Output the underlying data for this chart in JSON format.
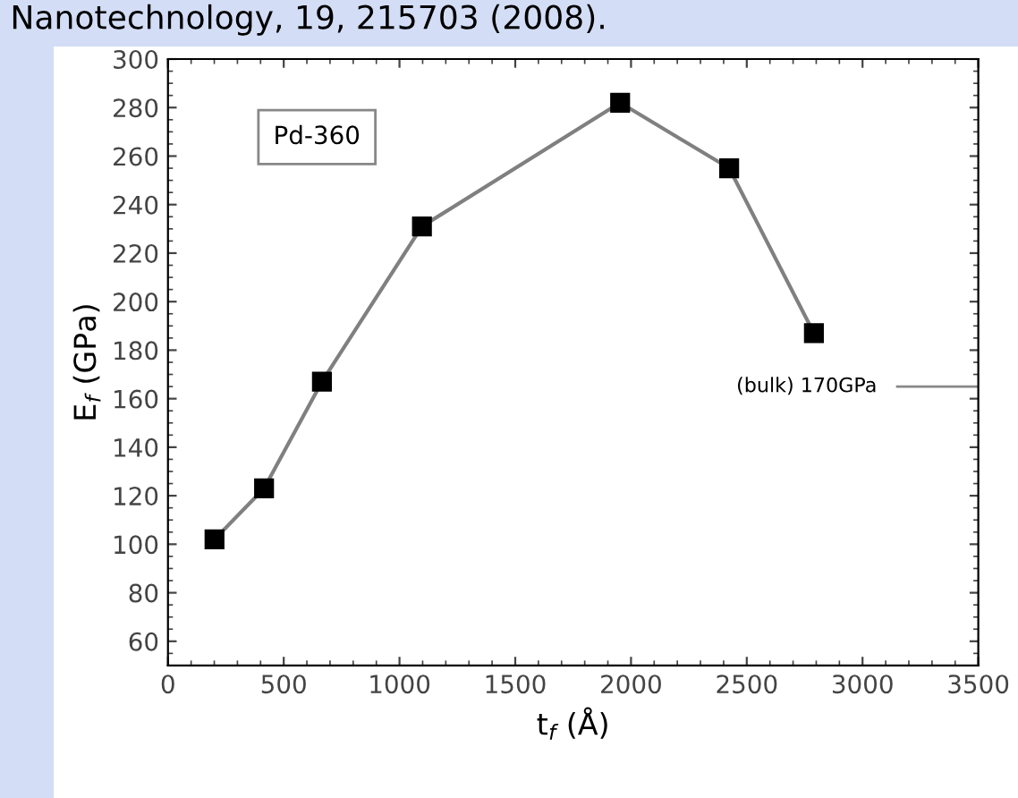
{
  "chart_data": {
    "type": "line",
    "title": "Nanotechnology, 19, 215703 (2008).",
    "xlabel": "t$_{f}$ (Å)",
    "ylabel": "E$_{f}$ (GPa)",
    "x": [
      201,
      415,
      665,
      1097,
      1953,
      2424,
      2790
    ],
    "series": [
      {
        "color": "#808080",
        "values": [
          102,
          123,
          167,
          231,
          282,
          255,
          187
        ]
      }
    ],
    "marker": "square",
    "line_style": "solid",
    "grid": false,
    "legend": false,
    "xlim": [
      0,
      3500
    ],
    "xticks": [
      0,
      500,
      1000,
      1500,
      2000,
      2500,
      3000,
      3500
    ],
    "ylim": [
      50,
      300
    ],
    "yticks": [
      60,
      80,
      100,
      120,
      140,
      160,
      180,
      200,
      220,
      240,
      260,
      280,
      300
    ],
    "annotations": [
      "Pd-360",
      "(bulk) 170GPa"
    ]
  }
}
